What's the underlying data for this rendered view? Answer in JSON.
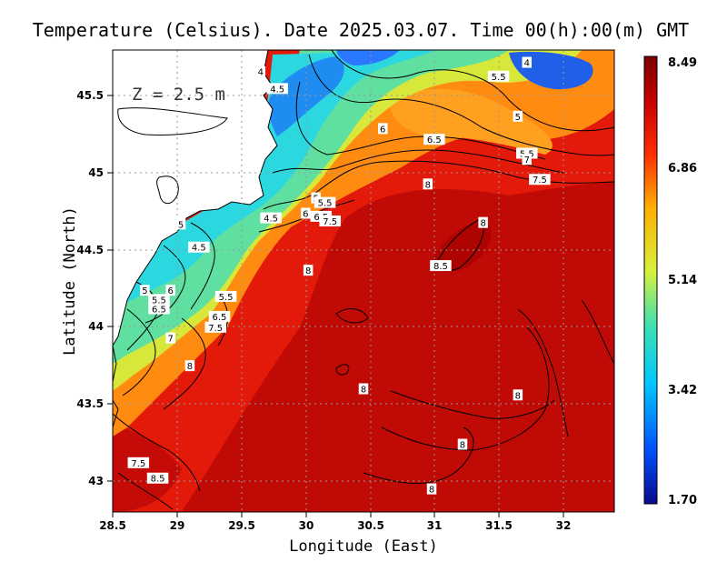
{
  "chart_data": {
    "type": "heatmap",
    "title": "Temperature (Celsius). Date 2025.03.07. Time 00(h):00(m) GMT",
    "xlabel": "Longitude (East)",
    "ylabel": "Latitude (North)",
    "xlim": [
      28.5,
      32.4
    ],
    "ylim": [
      42.8,
      45.8
    ],
    "x_ticks": [
      "28.5",
      "29",
      "29.5",
      "30",
      "30.5",
      "31",
      "31.5",
      "32"
    ],
    "y_ticks": [
      "43",
      "43.5",
      "44",
      "44.5",
      "45",
      "45.5"
    ],
    "grid": true,
    "depth_label": "Z = 2.5 m",
    "colorbar": {
      "min": 1.7,
      "max": 8.49,
      "ticks": [
        "1.70",
        "3.42",
        "5.14",
        "6.86",
        "8.49"
      ],
      "colors": [
        "#0a0a8c",
        "#0050ff",
        "#00c8ff",
        "#3fe0b0",
        "#d8f03c",
        "#ffb000",
        "#ff3000",
        "#c80000",
        "#7a0000"
      ]
    },
    "contour_labels": [
      {
        "text": "4",
        "lon": 29.65,
        "lat": 45.66
      },
      {
        "text": "4.5",
        "lon": 29.78,
        "lat": 45.55
      },
      {
        "text": "5.5",
        "lon": 31.5,
        "lat": 45.63
      },
      {
        "text": "4",
        "lon": 31.72,
        "lat": 45.72
      },
      {
        "text": "5",
        "lon": 31.65,
        "lat": 45.37
      },
      {
        "text": "6",
        "lon": 30.6,
        "lat": 45.29
      },
      {
        "text": "6.5",
        "lon": 31.0,
        "lat": 45.22
      },
      {
        "text": "5.5",
        "lon": 31.72,
        "lat": 45.13
      },
      {
        "text": "7",
        "lon": 31.72,
        "lat": 45.09
      },
      {
        "text": "7.5",
        "lon": 31.82,
        "lat": 44.96
      },
      {
        "text": "8",
        "lon": 30.95,
        "lat": 44.93
      },
      {
        "text": "5",
        "lon": 30.08,
        "lat": 44.84
      },
      {
        "text": "5.5",
        "lon": 30.15,
        "lat": 44.81
      },
      {
        "text": "6",
        "lon": 30.0,
        "lat": 44.74
      },
      {
        "text": "6.5",
        "lon": 30.12,
        "lat": 44.72
      },
      {
        "text": "7.5",
        "lon": 30.19,
        "lat": 44.69
      },
      {
        "text": "4.5",
        "lon": 29.73,
        "lat": 44.71
      },
      {
        "text": "8",
        "lon": 31.38,
        "lat": 44.68
      },
      {
        "text": "5",
        "lon": 29.03,
        "lat": 44.67
      },
      {
        "text": "4.5",
        "lon": 29.17,
        "lat": 44.52
      },
      {
        "text": "8.5",
        "lon": 31.05,
        "lat": 44.4
      },
      {
        "text": "8",
        "lon": 30.02,
        "lat": 44.37
      },
      {
        "text": "5",
        "lon": 28.75,
        "lat": 44.24
      },
      {
        "text": "6",
        "lon": 28.95,
        "lat": 44.24
      },
      {
        "text": "5.5",
        "lon": 28.86,
        "lat": 44.18
      },
      {
        "text": "5.5",
        "lon": 29.38,
        "lat": 44.2
      },
      {
        "text": "6.5",
        "lon": 28.86,
        "lat": 44.12
      },
      {
        "text": "6.5",
        "lon": 29.33,
        "lat": 44.07
      },
      {
        "text": "7.5",
        "lon": 29.3,
        "lat": 44.0
      },
      {
        "text": "7",
        "lon": 28.95,
        "lat": 43.93
      },
      {
        "text": "8",
        "lon": 29.1,
        "lat": 43.75
      },
      {
        "text": "8",
        "lon": 30.45,
        "lat": 43.6
      },
      {
        "text": "8",
        "lon": 31.65,
        "lat": 43.56
      },
      {
        "text": "8",
        "lon": 31.22,
        "lat": 43.24
      },
      {
        "text": "7.5",
        "lon": 28.7,
        "lat": 43.12
      },
      {
        "text": "8.5",
        "lon": 28.85,
        "lat": 43.02
      },
      {
        "text": "8",
        "lon": 30.98,
        "lat": 42.95
      }
    ]
  }
}
